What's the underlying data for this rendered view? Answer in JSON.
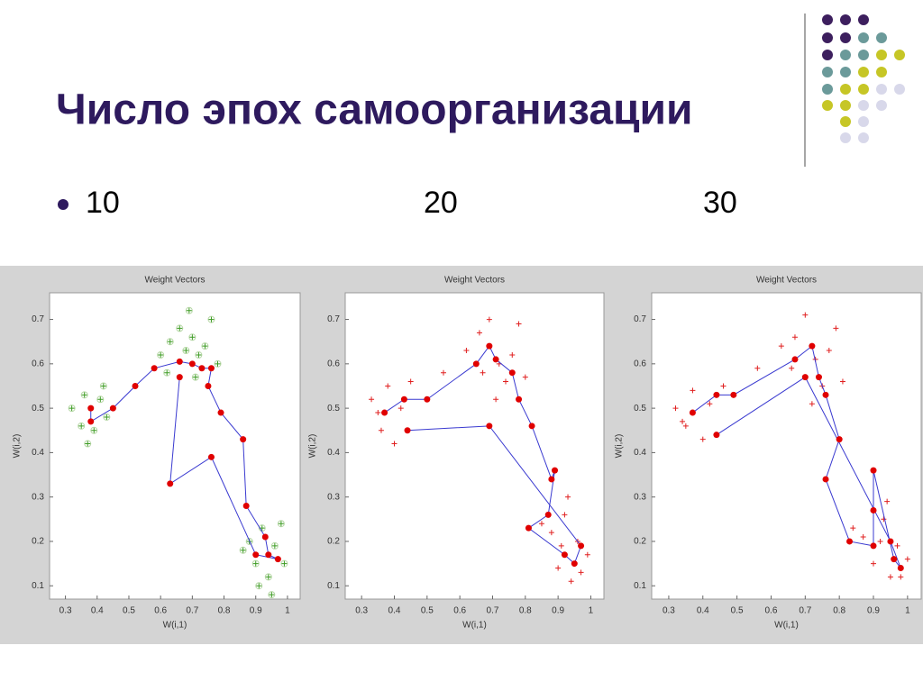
{
  "slide": {
    "title": "Число эпох самоорганизации",
    "bullets": [
      "10",
      "20",
      "30"
    ]
  },
  "chart_data": [
    {
      "type": "scatter",
      "title": "Weight Vectors",
      "x_label": "W(i,1)",
      "y_label": "W(i,2)",
      "xlim": [
        0.25,
        1.04
      ],
      "ylim": [
        0.07,
        0.76
      ],
      "xticks": [
        0.3,
        0.4,
        0.5,
        0.6,
        0.7,
        0.8,
        0.9,
        1
      ],
      "yticks": [
        0.1,
        0.2,
        0.3,
        0.4,
        0.5,
        0.6,
        0.7
      ],
      "series": [
        {
          "marker": "plus-circle",
          "color": "#3a9a20",
          "x": [
            0.32,
            0.35,
            0.36,
            0.39,
            0.41,
            0.43,
            0.37,
            0.42,
            0.6,
            0.63,
            0.66,
            0.68,
            0.7,
            0.72,
            0.74,
            0.76,
            0.62,
            0.71,
            0.78,
            0.69,
            0.88,
            0.9,
            0.92,
            0.94,
            0.96,
            0.98,
            0.91,
            0.99,
            0.86,
            0.95
          ],
          "values": [
            0.5,
            0.46,
            0.53,
            0.45,
            0.52,
            0.48,
            0.42,
            0.55,
            0.62,
            0.65,
            0.68,
            0.63,
            0.66,
            0.62,
            0.64,
            0.7,
            0.58,
            0.57,
            0.6,
            0.72,
            0.2,
            0.15,
            0.23,
            0.12,
            0.19,
            0.24,
            0.1,
            0.15,
            0.18,
            0.08
          ]
        },
        {
          "marker": "dot",
          "color": "#e00000",
          "line_color": "#3a3ad0",
          "x": [
            0.38,
            0.38,
            0.45,
            0.52,
            0.58,
            0.66,
            0.7,
            0.73,
            0.76,
            0.75,
            0.79,
            0.86,
            0.87,
            0.93,
            0.94,
            0.97,
            0.9,
            0.76,
            0.63,
            0.66
          ],
          "values": [
            0.5,
            0.47,
            0.5,
            0.55,
            0.59,
            0.605,
            0.6,
            0.59,
            0.59,
            0.55,
            0.49,
            0.43,
            0.28,
            0.21,
            0.17,
            0.16,
            0.17,
            0.39,
            0.33,
            0.57
          ]
        }
      ]
    },
    {
      "type": "scatter",
      "title": "Weight Vectors",
      "x_label": "W(i,1)",
      "y_label": "W(i,2)",
      "xlim": [
        0.25,
        1.04
      ],
      "ylim": [
        0.07,
        0.76
      ],
      "xticks": [
        0.3,
        0.4,
        0.5,
        0.6,
        0.7,
        0.8,
        0.9,
        1
      ],
      "yticks": [
        0.1,
        0.2,
        0.3,
        0.4,
        0.5,
        0.6,
        0.7
      ],
      "series": [
        {
          "marker": "plus",
          "color": "#e02020",
          "x": [
            0.33,
            0.36,
            0.38,
            0.4,
            0.42,
            0.45,
            0.35,
            0.55,
            0.62,
            0.66,
            0.69,
            0.72,
            0.74,
            0.76,
            0.78,
            0.8,
            0.67,
            0.71,
            0.88,
            0.9,
            0.92,
            0.94,
            0.96,
            0.99,
            0.91,
            0.85,
            0.97,
            0.93
          ],
          "values": [
            0.52,
            0.45,
            0.55,
            0.42,
            0.5,
            0.56,
            0.49,
            0.58,
            0.63,
            0.67,
            0.7,
            0.6,
            0.56,
            0.62,
            0.69,
            0.57,
            0.58,
            0.52,
            0.22,
            0.14,
            0.26,
            0.11,
            0.2,
            0.17,
            0.19,
            0.24,
            0.13,
            0.3
          ]
        },
        {
          "marker": "dot",
          "color": "#e00000",
          "line_color": "#3a3ad0",
          "x": [
            0.37,
            0.43,
            0.5,
            0.65,
            0.69,
            0.71,
            0.76,
            0.78,
            0.82,
            0.88,
            0.89,
            0.87,
            0.81,
            0.92,
            0.95,
            0.97,
            0.69,
            0.44
          ],
          "values": [
            0.49,
            0.52,
            0.52,
            0.6,
            0.64,
            0.61,
            0.58,
            0.52,
            0.46,
            0.34,
            0.36,
            0.26,
            0.23,
            0.17,
            0.15,
            0.19,
            0.46,
            0.45
          ]
        }
      ]
    },
    {
      "type": "scatter",
      "title": "Weight Vectors",
      "x_label": "W(i,1)",
      "y_label": "W(i,2)",
      "xlim": [
        0.25,
        1.04
      ],
      "ylim": [
        0.07,
        0.76
      ],
      "xticks": [
        0.3,
        0.4,
        0.5,
        0.6,
        0.7,
        0.8,
        0.9,
        1
      ],
      "yticks": [
        0.1,
        0.2,
        0.3,
        0.4,
        0.5,
        0.6,
        0.7
      ],
      "series": [
        {
          "marker": "plus",
          "color": "#e02020",
          "x": [
            0.32,
            0.35,
            0.37,
            0.4,
            0.42,
            0.46,
            0.34,
            0.56,
            0.63,
            0.67,
            0.7,
            0.73,
            0.75,
            0.77,
            0.79,
            0.81,
            0.66,
            0.72,
            0.87,
            0.9,
            0.93,
            0.95,
            0.97,
            1.0,
            0.92,
            0.84,
            0.98,
            0.94
          ],
          "values": [
            0.5,
            0.46,
            0.54,
            0.43,
            0.51,
            0.55,
            0.47,
            0.59,
            0.64,
            0.66,
            0.71,
            0.61,
            0.55,
            0.63,
            0.68,
            0.56,
            0.59,
            0.51,
            0.21,
            0.15,
            0.25,
            0.12,
            0.19,
            0.16,
            0.2,
            0.23,
            0.12,
            0.29
          ]
        },
        {
          "marker": "dot",
          "color": "#e00000",
          "line_color": "#3a3ad0",
          "x": [
            0.37,
            0.44,
            0.49,
            0.67,
            0.72,
            0.74,
            0.76,
            0.8,
            0.76,
            0.83,
            0.9,
            0.9,
            0.9,
            0.96,
            0.98,
            0.95,
            0.7,
            0.44
          ],
          "values": [
            0.49,
            0.53,
            0.53,
            0.61,
            0.64,
            0.57,
            0.53,
            0.43,
            0.34,
            0.2,
            0.19,
            0.27,
            0.36,
            0.16,
            0.14,
            0.2,
            0.57,
            0.44
          ]
        }
      ]
    }
  ]
}
